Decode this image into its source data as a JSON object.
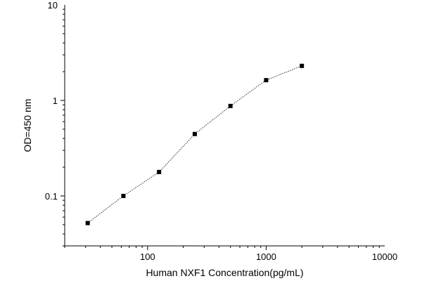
{
  "chart_data": {
    "type": "line",
    "title": "",
    "xlabel": "Human NXF1 Concentration(pg/mL)",
    "ylabel": "OD=450 nm",
    "x_scale": "log",
    "y_scale": "log",
    "xlim": [
      20,
      10000
    ],
    "ylim": [
      0.03,
      10
    ],
    "x_ticks": [
      {
        "value": 100,
        "label": "100"
      },
      {
        "value": 1000,
        "label": "1000"
      },
      {
        "value": 10000,
        "label": "10000"
      }
    ],
    "y_ticks": [
      {
        "value": 0.1,
        "label": "0.1"
      },
      {
        "value": 1,
        "label": "1"
      },
      {
        "value": 10,
        "label": "10"
      }
    ],
    "grid": false,
    "legend": "none",
    "series": [
      {
        "marker": "square",
        "line_style": "dotted",
        "color": "#000000",
        "x": [
          31.25,
          62.5,
          125,
          250,
          500,
          1000,
          2000
        ],
        "y": [
          0.052,
          0.1,
          0.178,
          0.445,
          0.875,
          1.63,
          2.3
        ]
      }
    ]
  }
}
